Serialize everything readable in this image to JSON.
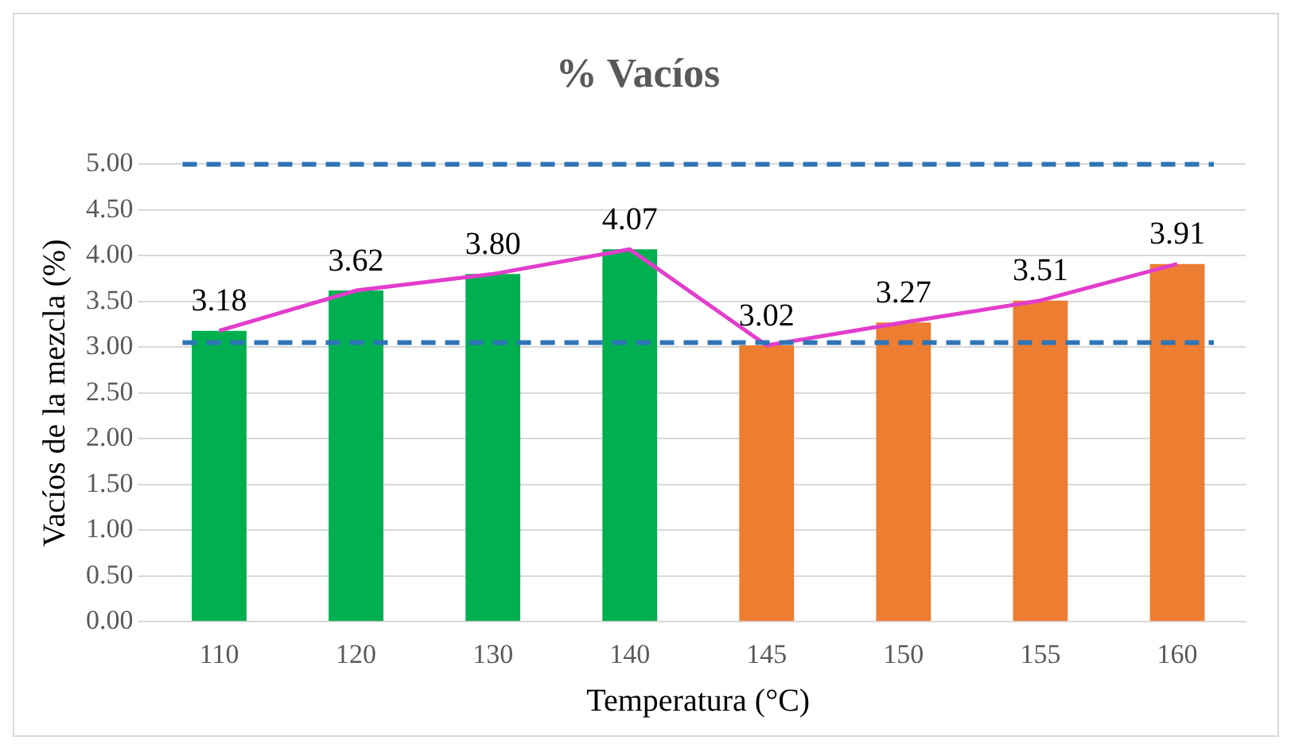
{
  "chart_data": {
    "type": "bar",
    "title": "% Vacíos",
    "xlabel": "Temperatura (°C)",
    "ylabel": "Vacíos de la mezcla (%)",
    "categories": [
      "110",
      "120",
      "130",
      "140",
      "145",
      "150",
      "155",
      "160"
    ],
    "series": [
      {
        "colors": [
          "#00b050",
          "#00b050",
          "#00b050",
          "#00b050",
          "#ed7d31",
          "#ed7d31",
          "#ed7d31",
          "#ed7d31"
        ],
        "values": [
          3.18,
          3.62,
          3.8,
          4.07,
          3.02,
          3.27,
          3.51,
          3.91
        ]
      },
      {
        "type": "line",
        "color": "#e23dcc",
        "values": [
          3.18,
          3.62,
          3.8,
          4.07,
          3.02,
          3.27,
          3.51,
          3.91
        ],
        "value_labels": [
          "3.18",
          "3.62",
          "3.80",
          "4.07",
          "3.02",
          "3.27",
          "3.51",
          "3.91"
        ]
      }
    ],
    "ylim": [
      0,
      5
    ],
    "yticks": [
      {
        "value": 0,
        "label": "0.00"
      },
      {
        "value": 0.5,
        "label": "0.50"
      },
      {
        "value": 1,
        "label": "1.00"
      },
      {
        "value": 1.5,
        "label": "1.50"
      },
      {
        "value": 2,
        "label": "2.00"
      },
      {
        "value": 2.5,
        "label": "2.50"
      },
      {
        "value": 3,
        "label": "3.00"
      },
      {
        "value": 3.5,
        "label": "3.50"
      },
      {
        "value": 4,
        "label": "4.00"
      },
      {
        "value": 4.5,
        "label": "4.50"
      },
      {
        "value": 5,
        "label": "5.00"
      }
    ],
    "ref_lines": [
      {
        "axis": "y",
        "value": 5,
        "color": "#2e75b6",
        "line_style": "dashed"
      },
      {
        "axis": "y",
        "value": 3.05,
        "color": "#2e75b6",
        "line_style": "dashed"
      }
    ],
    "grid": "y",
    "legend": false,
    "marker": "none"
  }
}
